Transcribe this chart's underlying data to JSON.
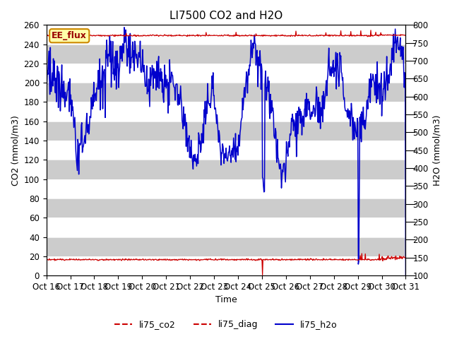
{
  "title": "LI7500 CO2 and H2O",
  "xlabel": "Time",
  "ylabel_left": "CO2 (mmol/m3)",
  "ylabel_right": "H2O (mmol/m3)",
  "ylim_left": [
    0,
    260
  ],
  "ylim_right": [
    100,
    800
  ],
  "xtick_labels": [
    "Oct 16",
    "Oct 17",
    "Oct 18",
    "Oct 19",
    "Oct 20",
    "Oct 21",
    "Oct 22",
    "Oct 23",
    "Oct 24",
    "Oct 25",
    "Oct 26",
    "Oct 27",
    "Oct 28",
    "Oct 29",
    "Oct 30",
    "Oct 31"
  ],
  "color_co2": "#cc0000",
  "color_diag": "#cc0000",
  "color_h2o": "#0000cc",
  "bg_color": "#ffffff",
  "plot_bg_color": "#e0e0e0",
  "stripe_color": "#cccccc",
  "ee_flux_box_color": "#ffffaa",
  "ee_flux_border_color": "#cc8800",
  "title_fontsize": 11,
  "label_fontsize": 9,
  "tick_fontsize": 8.5
}
